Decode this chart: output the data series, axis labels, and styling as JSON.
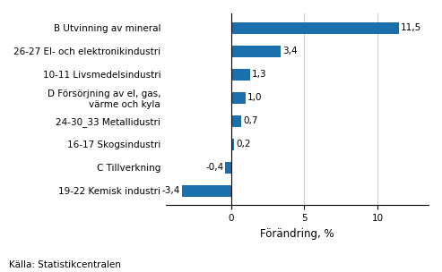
{
  "categories": [
    "19-22 Kemisk industri",
    "C Tillverkning",
    "16-17 Skogsindustri",
    "24-30_33 Metallidustri",
    "D Försörjning av el, gas,\nvärme och kyla",
    "10-11 Livsmedelsindustri",
    "26-27 El- och elektronikindustri",
    "B Utvinning av mineral"
  ],
  "values": [
    -3.4,
    -0.4,
    0.2,
    0.7,
    1.0,
    1.3,
    3.4,
    11.5
  ],
  "bar_color": "#1a6fac",
  "xlabel": "Förändring, %",
  "source": "Källa: Statistikcentralen",
  "xlim": [
    -4.5,
    13.5
  ],
  "xticks": [
    0,
    5,
    10
  ],
  "grid_color": "#cccccc",
  "label_fontsize": 7.5,
  "value_fontsize": 7.5,
  "xlabel_fontsize": 8.5,
  "source_fontsize": 7.5
}
